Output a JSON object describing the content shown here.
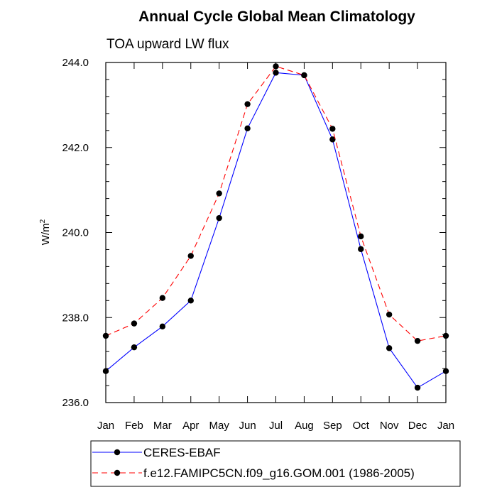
{
  "chart_data": {
    "type": "line",
    "title": "Annual Cycle Global Mean Climatology",
    "subtitle": "TOA upward LW flux",
    "ylabel": "W/m",
    "ylabel_superscript": "2",
    "xlabel": "",
    "categories": [
      "Jan",
      "Feb",
      "Mar",
      "Apr",
      "May",
      "Jun",
      "Jul",
      "Aug",
      "Sep",
      "Oct",
      "Nov",
      "Dec",
      "Jan"
    ],
    "ylim": [
      236.0,
      244.0
    ],
    "yticks": [
      "236.0",
      "238.0",
      "240.0",
      "242.0",
      "244.0"
    ],
    "grid": false,
    "legend_position": "bottom",
    "series": [
      {
        "name": "CERES-EBAF",
        "color": "#0000ff",
        "line_style": "solid",
        "marker": "filled-circle",
        "values": [
          236.74,
          237.3,
          237.79,
          238.4,
          240.34,
          242.45,
          243.76,
          243.7,
          242.19,
          239.61,
          237.28,
          236.35,
          236.74
        ]
      },
      {
        "name": "f.e12.FAMIPC5CN.f09_g16.GOM.001 (1986-2005)",
        "color": "#ff0000",
        "line_style": "dashed",
        "marker": "filled-circle",
        "values": [
          237.57,
          237.86,
          238.46,
          239.45,
          240.92,
          243.02,
          243.91,
          243.7,
          242.44,
          239.91,
          238.07,
          237.45,
          237.57
        ]
      }
    ]
  }
}
